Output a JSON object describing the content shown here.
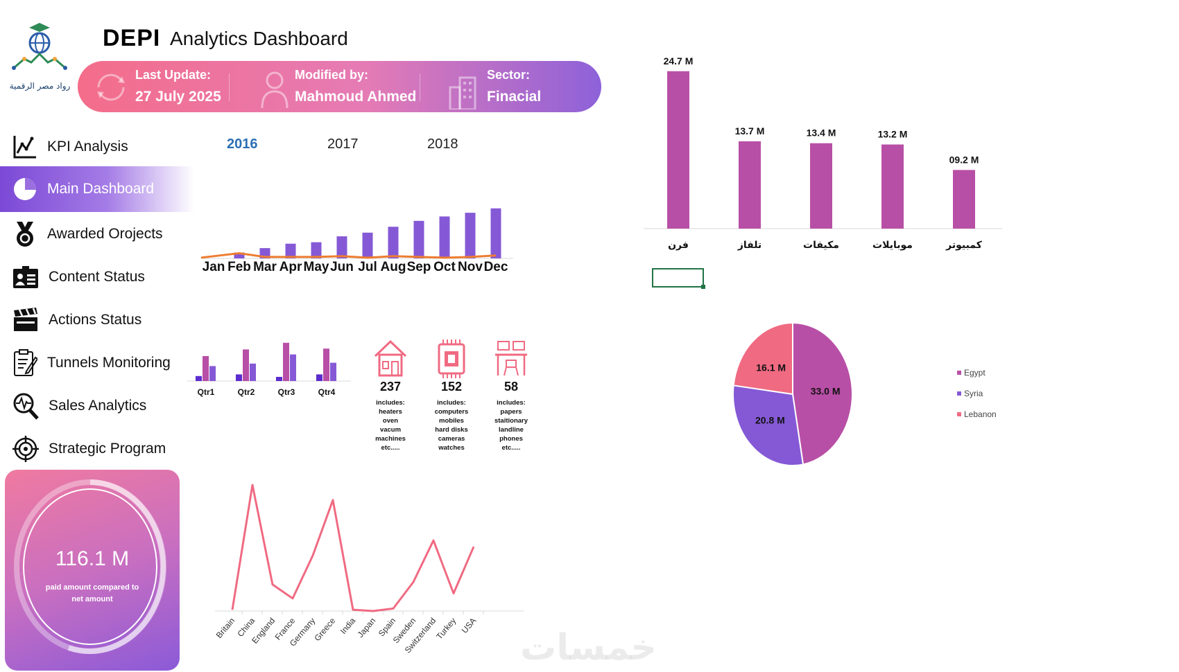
{
  "logo": {
    "name": "logo-icon",
    "caption": "رواد مصر الرقمية"
  },
  "header": {
    "brand": "DEPI",
    "title": "Analytics Dashboard"
  },
  "info": {
    "last_update_label": "Last Update:",
    "last_update_value": "27 July 2025",
    "modified_label": "Modified by:",
    "modified_value": "Mahmoud Ahmed",
    "sector_label": "Sector:",
    "sector_value": "Finacial"
  },
  "nav": [
    {
      "label": "KPI Analysis",
      "icon": "line-chart-icon"
    },
    {
      "label": "Main Dashboard",
      "icon": "pie-chart-icon"
    },
    {
      "label": "Awarded Orojects",
      "icon": "medal-icon"
    },
    {
      "label": "Content Status",
      "icon": "id-card-icon"
    },
    {
      "label": "Actions Status",
      "icon": "clapperboard-icon"
    },
    {
      "label": "Tunnels Monitoring",
      "icon": "clipboard-icon"
    },
    {
      "label": "Sales Analytics",
      "icon": "magnifier-pulse-icon"
    },
    {
      "label": "Strategic Program",
      "icon": "target-icon"
    }
  ],
  "years": [
    "2016",
    "2017",
    "2018"
  ],
  "kpi": {
    "value": "116.1 M",
    "caption_line1": "paid amount compared to",
    "caption_line2": "net amount"
  },
  "categories": [
    {
      "count": "237",
      "icon": "house-icon",
      "lines": [
        "includes:",
        "heaters",
        "oven",
        "vacum",
        "machines",
        "etc....."
      ]
    },
    {
      "count": "152",
      "icon": "chip-icon",
      "lines": [
        "includes:",
        "computers",
        "mobiles",
        "hard disks",
        "cameras",
        "watches"
      ]
    },
    {
      "count": "58",
      "icon": "desk-icon",
      "lines": [
        "includes:",
        "papers",
        "staitionary",
        "landline",
        "phones",
        "etc....."
      ]
    }
  ],
  "colors": {
    "magenta": "#b84fa6",
    "purple": "#8559d6",
    "pink": "#f06a82",
    "indigo": "#5b2ccf"
  },
  "watermark": "خمسات",
  "chart_data": [
    {
      "type": "bar",
      "title": "",
      "categories": [
        "Jan",
        "Feb",
        "Mar",
        "Apr",
        "May",
        "Jun",
        "Jul",
        "Aug",
        "Sep",
        "Oct",
        "Nov",
        "Dec"
      ],
      "series": [
        {
          "name": "bars",
          "values": [
            0,
            8,
            14,
            20,
            22,
            30,
            35,
            43,
            51,
            57,
            62,
            68
          ]
        },
        {
          "name": "line",
          "values": [
            3,
            7,
            2,
            2,
            2,
            3,
            1,
            3,
            2,
            1,
            2,
            4
          ]
        }
      ],
      "ylim": [
        0,
        80
      ]
    },
    {
      "type": "bar",
      "title": "",
      "categories": [
        "Qtr1",
        "Qtr2",
        "Qtr3",
        "Qtr4"
      ],
      "series": [
        {
          "name": "s1",
          "values": [
            6,
            8,
            5,
            8
          ]
        },
        {
          "name": "s2",
          "values": [
            30,
            38,
            46,
            39
          ]
        },
        {
          "name": "s3",
          "values": [
            18,
            21,
            32,
            22
          ]
        }
      ],
      "ylim": [
        0,
        50
      ]
    },
    {
      "type": "bar",
      "title": "",
      "categories": [
        "فرن",
        "تلفاز",
        "مكيفات",
        "موبايلات",
        "كمبيوتر"
      ],
      "values": [
        24.7,
        13.7,
        13.4,
        13.2,
        9.2
      ],
      "data_labels": [
        "24.7 M",
        "13.7 M",
        "13.4 M",
        "13.2 M",
        "09.2 M"
      ],
      "ylim": [
        0,
        25
      ]
    },
    {
      "type": "pie",
      "title": "",
      "categories": [
        "Egypt",
        "Syria",
        "Lebanon"
      ],
      "values": [
        33.0,
        20.8,
        16.1
      ],
      "data_labels": [
        "33.0 M",
        "20.8 M",
        "16.1 M"
      ],
      "legend": "right"
    },
    {
      "type": "line",
      "title": "",
      "categories": [
        "Britain",
        "China",
        "England",
        "France",
        "Germany",
        "Greece",
        "India",
        "Japan",
        "Spain",
        "Sweden",
        "Switzerland",
        "Turkey",
        "USA"
      ],
      "values": [
        1,
        100,
        21,
        10,
        44,
        88,
        1,
        0,
        2,
        23,
        56,
        14,
        51
      ],
      "ylim": [
        0,
        100
      ]
    }
  ]
}
